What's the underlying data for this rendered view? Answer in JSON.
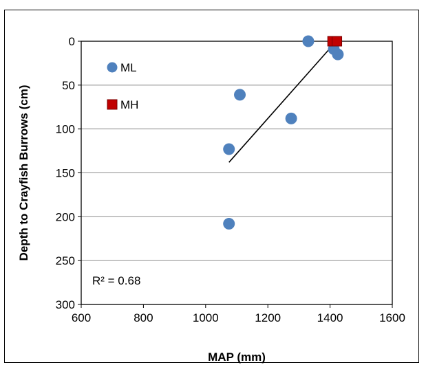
{
  "chart_data": {
    "type": "scatter",
    "title": "",
    "xlabel": "MAP (mm)",
    "ylabel": "Depth to Crayfish Burrows  (cm)",
    "xlim": [
      600,
      1600
    ],
    "ylim": [
      0,
      300
    ],
    "y_inverted": true,
    "xticks": [
      600,
      800,
      1000,
      1200,
      1400,
      1600
    ],
    "yticks": [
      0,
      50,
      100,
      150,
      200,
      250,
      300
    ],
    "x_tick_labels": [
      "600",
      "800",
      "1000",
      "1200",
      "1400",
      "1600"
    ],
    "y_tick_labels": [
      "0",
      "50",
      "100",
      "150",
      "200",
      "250",
      "300"
    ],
    "grid": "horizontal",
    "legend": "upper-left inside",
    "series": [
      {
        "name": "ML",
        "marker": "circle",
        "color": "#4F81BD",
        "points": [
          {
            "x": 1330,
            "y": 0
          },
          {
            "x": 1412,
            "y": 9
          },
          {
            "x": 1425,
            "y": 15
          },
          {
            "x": 1110,
            "y": 61
          },
          {
            "x": 1275,
            "y": 88
          },
          {
            "x": 1075,
            "y": 123
          },
          {
            "x": 1075,
            "y": 208
          }
        ]
      },
      {
        "name": "MH",
        "marker": "square",
        "color": "#C00000",
        "points": [
          {
            "x": 1408,
            "y": 0
          },
          {
            "x": 1422,
            "y": 0
          }
        ]
      }
    ],
    "trendline": {
      "x": [
        1075,
        1420
      ],
      "y": [
        138,
        0
      ],
      "color": "#000000"
    },
    "annotation": "R² = 0.68"
  }
}
